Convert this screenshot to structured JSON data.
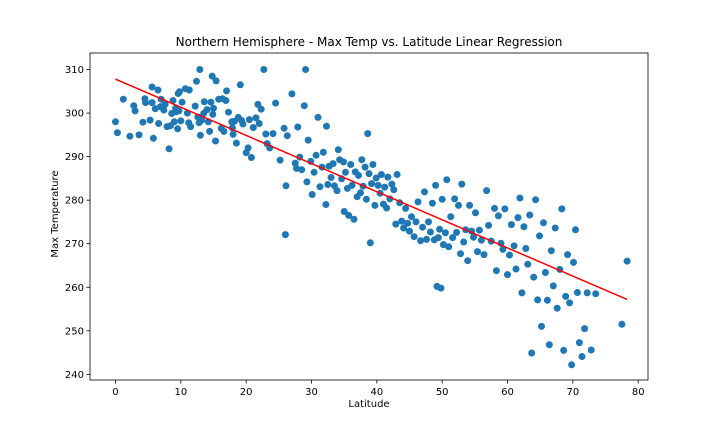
{
  "chart_data": {
    "type": "scatter",
    "title": "Northern Hemisphere - Max Temp vs. Latitude Linear Regression",
    "xlabel": "Latitude",
    "ylabel": "Max Temperature",
    "xlim": [
      -3.9,
      81.5
    ],
    "ylim": [
      238.7,
      313.8
    ],
    "xticks": [
      0,
      10,
      20,
      30,
      40,
      50,
      60,
      70,
      80
    ],
    "yticks": [
      240,
      250,
      260,
      270,
      280,
      290,
      300,
      310
    ],
    "grid": false,
    "colors": {
      "points": "#1f77b4",
      "regression": "#ff0000"
    },
    "series": [
      {
        "type": "scatter",
        "points": [
          [
            0.0,
            298.0
          ],
          [
            0.3,
            295.5
          ],
          [
            1.2,
            303.2
          ],
          [
            2.2,
            294.7
          ],
          [
            2.8,
            301.7
          ],
          [
            3.0,
            300.5
          ],
          [
            3.6,
            295.0
          ],
          [
            4.2,
            297.9
          ],
          [
            4.5,
            303.3
          ],
          [
            4.6,
            302.4
          ],
          [
            5.3,
            298.4
          ],
          [
            5.6,
            302.4
          ],
          [
            5.6,
            306.0
          ],
          [
            5.8,
            294.2
          ],
          [
            6.1,
            301.0
          ],
          [
            6.5,
            305.3
          ],
          [
            6.6,
            297.6
          ],
          [
            6.9,
            301.5
          ],
          [
            7.0,
            303.2
          ],
          [
            7.4,
            300.7
          ],
          [
            7.6,
            302.0
          ],
          [
            7.9,
            296.9
          ],
          [
            8.2,
            291.8
          ],
          [
            8.4,
            297.1
          ],
          [
            8.6,
            299.9
          ],
          [
            8.8,
            302.9
          ],
          [
            9.0,
            298.0
          ],
          [
            9.2,
            301.1
          ],
          [
            9.3,
            300.3
          ],
          [
            9.5,
            296.4
          ],
          [
            9.6,
            304.5
          ],
          [
            9.7,
            300.5
          ],
          [
            9.8,
            304.9
          ],
          [
            10.0,
            298.2
          ],
          [
            10.2,
            302.5
          ],
          [
            10.7,
            305.6
          ],
          [
            11.0,
            300.0
          ],
          [
            11.2,
            297.8
          ],
          [
            11.3,
            305.3
          ],
          [
            11.5,
            296.9
          ],
          [
            12.2,
            301.6
          ],
          [
            12.4,
            307.3
          ],
          [
            12.6,
            299.1
          ],
          [
            12.8,
            297.8
          ],
          [
            12.9,
            310.0
          ],
          [
            13.0,
            294.9
          ],
          [
            13.2,
            298.4
          ],
          [
            13.5,
            299.9
          ],
          [
            13.6,
            302.6
          ],
          [
            14.0,
            300.8
          ],
          [
            14.2,
            298.0
          ],
          [
            14.4,
            295.8
          ],
          [
            14.6,
            302.5
          ],
          [
            14.8,
            308.5
          ],
          [
            14.9,
            299.7
          ],
          [
            15.0,
            301.1
          ],
          [
            15.3,
            293.6
          ],
          [
            15.4,
            307.4
          ],
          [
            15.8,
            303.2
          ],
          [
            16.2,
            296.5
          ],
          [
            16.4,
            303.3
          ],
          [
            16.6,
            295.8
          ],
          [
            16.9,
            302.9
          ],
          [
            17.0,
            305.1
          ],
          [
            17.3,
            300.2
          ],
          [
            17.8,
            298.0
          ],
          [
            17.9,
            296.6
          ],
          [
            18.0,
            295.1
          ],
          [
            18.2,
            298.1
          ],
          [
            18.5,
            293.1
          ],
          [
            18.8,
            299.0
          ],
          [
            19.1,
            306.5
          ],
          [
            19.3,
            298.3
          ],
          [
            19.5,
            297.5
          ],
          [
            20.0,
            290.9
          ],
          [
            20.3,
            292.0
          ],
          [
            20.5,
            298.5
          ],
          [
            20.8,
            289.8
          ],
          [
            21.1,
            296.7
          ],
          [
            21.5,
            298.9
          ],
          [
            21.8,
            302.0
          ],
          [
            22.0,
            297.6
          ],
          [
            22.3,
            300.9
          ],
          [
            22.7,
            310.0
          ],
          [
            23.0,
            295.2
          ],
          [
            23.2,
            293.0
          ],
          [
            23.6,
            292.0
          ],
          [
            24.1,
            295.3
          ],
          [
            24.5,
            302.3
          ],
          [
            25.2,
            289.2
          ],
          [
            25.8,
            296.5
          ],
          [
            26.0,
            272.1
          ],
          [
            26.1,
            283.3
          ],
          [
            26.3,
            294.8
          ],
          [
            27.0,
            304.4
          ],
          [
            27.5,
            288.5
          ],
          [
            27.7,
            287.3
          ],
          [
            27.9,
            296.8
          ],
          [
            28.2,
            289.9
          ],
          [
            28.5,
            287.0
          ],
          [
            28.9,
            301.7
          ],
          [
            29.1,
            310.0
          ],
          [
            29.3,
            284.2
          ],
          [
            29.5,
            293.8
          ],
          [
            29.9,
            288.9
          ],
          [
            30.1,
            281.3
          ],
          [
            30.4,
            286.4
          ],
          [
            30.7,
            290.3
          ],
          [
            31.0,
            299.0
          ],
          [
            31.3,
            283.1
          ],
          [
            31.6,
            287.6
          ],
          [
            31.8,
            291.0
          ],
          [
            32.2,
            279.0
          ],
          [
            32.3,
            297.0
          ],
          [
            32.5,
            283.6
          ],
          [
            32.7,
            287.8
          ],
          [
            33.0,
            285.2
          ],
          [
            33.3,
            288.4
          ],
          [
            33.5,
            283.3
          ],
          [
            33.9,
            282.2
          ],
          [
            34.1,
            291.6
          ],
          [
            34.3,
            289.3
          ],
          [
            34.6,
            284.9
          ],
          [
            34.9,
            288.8
          ],
          [
            35.0,
            277.4
          ],
          [
            35.2,
            286.4
          ],
          [
            35.5,
            282.7
          ],
          [
            35.7,
            276.5
          ],
          [
            36.0,
            288.2
          ],
          [
            36.2,
            283.4
          ],
          [
            36.5,
            275.6
          ],
          [
            36.7,
            286.5
          ],
          [
            37.0,
            280.8
          ],
          [
            37.2,
            285.7
          ],
          [
            37.5,
            281.7
          ],
          [
            37.7,
            289.3
          ],
          [
            37.9,
            283.2
          ],
          [
            38.2,
            287.6
          ],
          [
            38.4,
            280.2
          ],
          [
            38.6,
            295.3
          ],
          [
            38.8,
            286.1
          ],
          [
            39.0,
            270.2
          ],
          [
            39.2,
            283.8
          ],
          [
            39.4,
            288.2
          ],
          [
            39.7,
            278.8
          ],
          [
            39.9,
            285.1
          ],
          [
            40.2,
            283.4
          ],
          [
            40.5,
            281.6
          ],
          [
            40.7,
            285.9
          ],
          [
            41.0,
            279.1
          ],
          [
            41.2,
            283.0
          ],
          [
            41.5,
            278.2
          ],
          [
            41.7,
            285.3
          ],
          [
            42.0,
            280.3
          ],
          [
            42.3,
            283.7
          ],
          [
            42.6,
            282.4
          ],
          [
            42.9,
            274.5
          ],
          [
            43.1,
            285.9
          ],
          [
            43.5,
            279.4
          ],
          [
            43.8,
            275.2
          ],
          [
            44.1,
            273.6
          ],
          [
            44.4,
            278.1
          ],
          [
            44.7,
            274.7
          ],
          [
            45.0,
            272.9
          ],
          [
            45.3,
            276.2
          ],
          [
            45.7,
            271.6
          ],
          [
            46.0,
            275.0
          ],
          [
            46.3,
            279.6
          ],
          [
            46.7,
            270.7
          ],
          [
            47.0,
            273.8
          ],
          [
            47.3,
            281.9
          ],
          [
            47.6,
            271.0
          ],
          [
            47.9,
            275.0
          ],
          [
            48.2,
            272.7
          ],
          [
            48.5,
            279.3
          ],
          [
            48.8,
            270.9
          ],
          [
            49.0,
            283.4
          ],
          [
            49.2,
            260.2
          ],
          [
            49.4,
            271.4
          ],
          [
            49.6,
            273.3
          ],
          [
            49.8,
            259.8
          ],
          [
            50.0,
            280.2
          ],
          [
            50.2,
            269.8
          ],
          [
            50.5,
            272.5
          ],
          [
            50.7,
            284.7
          ],
          [
            51.0,
            269.3
          ],
          [
            51.3,
            276.2
          ],
          [
            51.6,
            271.4
          ],
          [
            51.9,
            280.3
          ],
          [
            52.2,
            272.6
          ],
          [
            52.5,
            278.8
          ],
          [
            52.8,
            267.7
          ],
          [
            53.0,
            283.7
          ],
          [
            53.3,
            270.4
          ],
          [
            53.6,
            273.2
          ],
          [
            53.9,
            266.1
          ],
          [
            54.2,
            278.8
          ],
          [
            54.5,
            272.9
          ],
          [
            54.8,
            271.5
          ],
          [
            55.1,
            277.1
          ],
          [
            55.4,
            268.2
          ],
          [
            55.7,
            273.1
          ],
          [
            56.0,
            270.8
          ],
          [
            56.4,
            267.5
          ],
          [
            56.8,
            282.2
          ],
          [
            57.1,
            274.2
          ],
          [
            57.5,
            270.6
          ],
          [
            58.0,
            278.1
          ],
          [
            58.3,
            263.8
          ],
          [
            58.6,
            276.4
          ],
          [
            59.0,
            270.1
          ],
          [
            59.3,
            268.7
          ],
          [
            59.6,
            278.0
          ],
          [
            60.0,
            262.9
          ],
          [
            60.3,
            267.4
          ],
          [
            60.6,
            274.4
          ],
          [
            61.0,
            269.5
          ],
          [
            61.3,
            264.2
          ],
          [
            61.6,
            276.0
          ],
          [
            61.9,
            280.5
          ],
          [
            62.2,
            258.7
          ],
          [
            62.5,
            273.9
          ],
          [
            62.8,
            268.9
          ],
          [
            63.1,
            265.3
          ],
          [
            63.4,
            276.6
          ],
          [
            63.7,
            244.9
          ],
          [
            64.0,
            262.3
          ],
          [
            64.3,
            280.1
          ],
          [
            64.6,
            257.1
          ],
          [
            64.9,
            271.8
          ],
          [
            65.2,
            251.0
          ],
          [
            65.5,
            274.8
          ],
          [
            65.8,
            263.4
          ],
          [
            66.1,
            257.0
          ],
          [
            66.4,
            246.8
          ],
          [
            66.7,
            268.4
          ],
          [
            67.0,
            260.3
          ],
          [
            67.3,
            273.6
          ],
          [
            67.6,
            255.2
          ],
          [
            68.0,
            264.1
          ],
          [
            68.3,
            278.0
          ],
          [
            68.6,
            245.5
          ],
          [
            68.9,
            257.9
          ],
          [
            69.2,
            267.5
          ],
          [
            69.5,
            256.4
          ],
          [
            69.8,
            242.2
          ],
          [
            70.1,
            265.7
          ],
          [
            70.4,
            273.2
          ],
          [
            70.7,
            258.8
          ],
          [
            71.0,
            247.3
          ],
          [
            71.4,
            244.1
          ],
          [
            71.8,
            250.5
          ],
          [
            72.2,
            258.7
          ],
          [
            72.8,
            245.6
          ],
          [
            73.5,
            258.5
          ],
          [
            77.5,
            251.5
          ],
          [
            78.3,
            266.0
          ]
        ]
      },
      {
        "type": "line",
        "points": [
          [
            0.0,
            307.8
          ],
          [
            78.3,
            257.2
          ]
        ]
      }
    ]
  }
}
